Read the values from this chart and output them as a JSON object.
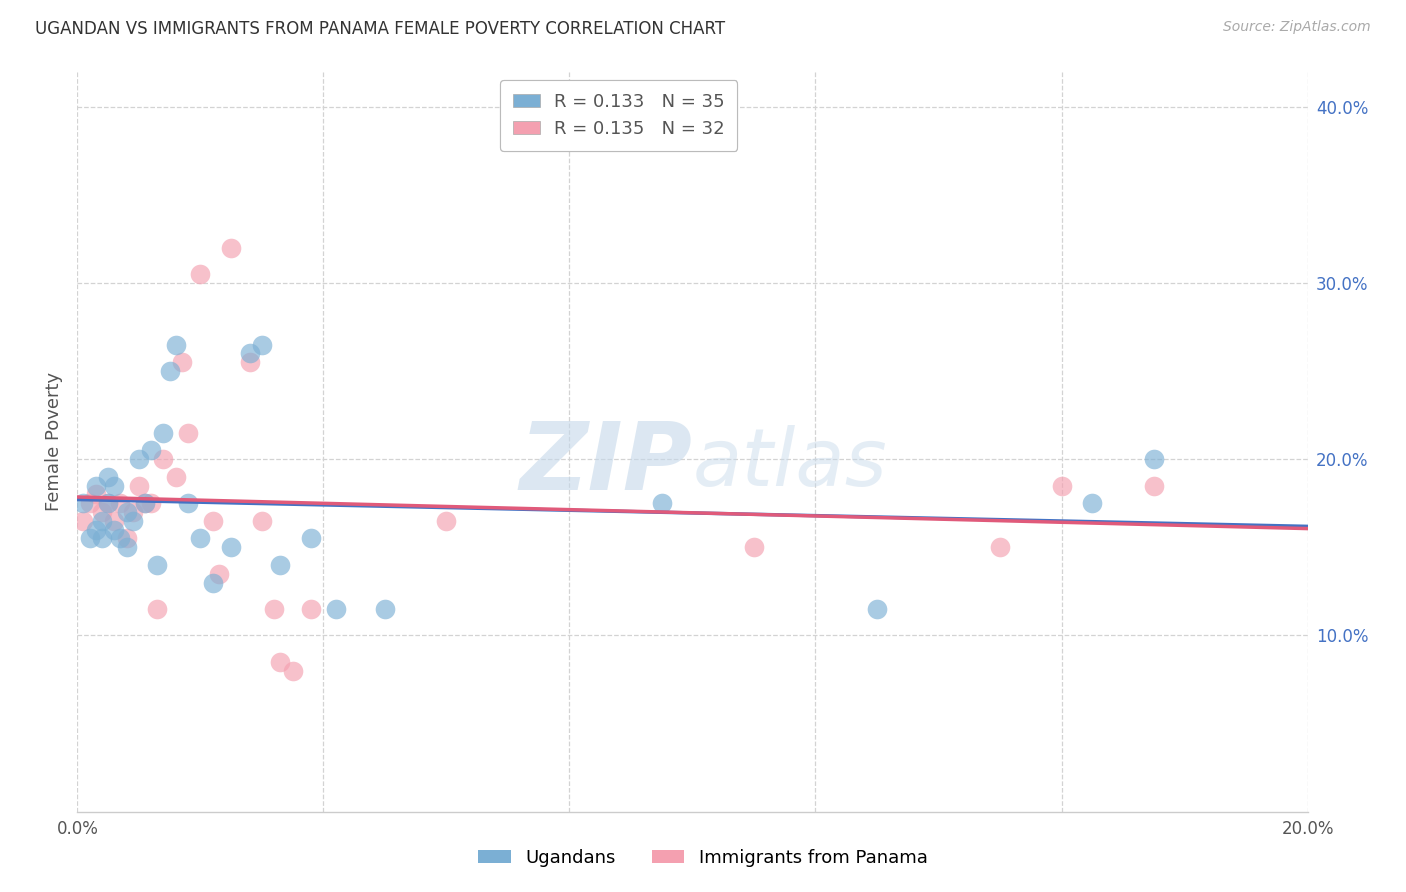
{
  "title": "UGANDAN VS IMMIGRANTS FROM PANAMA FEMALE POVERTY CORRELATION CHART",
  "source": "Source: ZipAtlas.com",
  "ylabel": "Female Poverty",
  "xlim": [
    0.0,
    0.2
  ],
  "ylim": [
    0.0,
    0.42
  ],
  "yticks": [
    0.1,
    0.2,
    0.3,
    0.4
  ],
  "ytick_labels": [
    "10.0%",
    "20.0%",
    "30.0%",
    "40.0%"
  ],
  "xticks": [
    0.0,
    0.04,
    0.08,
    0.12,
    0.16,
    0.2
  ],
  "xtick_labels": [
    "0.0%",
    "",
    "",
    "",
    "",
    "20.0%"
  ],
  "ugandan_color": "#7bafd4",
  "panama_color": "#f4a0b0",
  "line_blue": "#4472c4",
  "line_pink": "#e05a7a",
  "background_color": "#ffffff",
  "grid_color": "#d3d3d3",
  "R_ugandan": "0.133",
  "N_ugandan": "35",
  "R_panama": "0.135",
  "N_panama": "32",
  "ugandan_x": [
    0.001,
    0.002,
    0.003,
    0.003,
    0.004,
    0.004,
    0.005,
    0.005,
    0.006,
    0.006,
    0.007,
    0.008,
    0.008,
    0.009,
    0.01,
    0.011,
    0.012,
    0.013,
    0.014,
    0.015,
    0.016,
    0.018,
    0.02,
    0.022,
    0.025,
    0.028,
    0.03,
    0.033,
    0.038,
    0.042,
    0.05,
    0.095,
    0.13,
    0.165,
    0.175
  ],
  "ugandan_y": [
    0.175,
    0.155,
    0.16,
    0.185,
    0.165,
    0.155,
    0.175,
    0.19,
    0.16,
    0.185,
    0.155,
    0.17,
    0.15,
    0.165,
    0.2,
    0.175,
    0.205,
    0.14,
    0.215,
    0.25,
    0.265,
    0.175,
    0.155,
    0.13,
    0.15,
    0.26,
    0.265,
    0.14,
    0.155,
    0.115,
    0.115,
    0.175,
    0.115,
    0.175,
    0.2
  ],
  "panama_x": [
    0.001,
    0.002,
    0.003,
    0.004,
    0.005,
    0.006,
    0.007,
    0.008,
    0.009,
    0.01,
    0.011,
    0.012,
    0.013,
    0.014,
    0.016,
    0.017,
    0.018,
    0.02,
    0.022,
    0.023,
    0.025,
    0.028,
    0.03,
    0.032,
    0.033,
    0.035,
    0.038,
    0.06,
    0.11,
    0.15,
    0.16,
    0.175
  ],
  "panama_y": [
    0.165,
    0.175,
    0.18,
    0.17,
    0.175,
    0.165,
    0.175,
    0.155,
    0.17,
    0.185,
    0.175,
    0.175,
    0.115,
    0.2,
    0.19,
    0.255,
    0.215,
    0.305,
    0.165,
    0.135,
    0.32,
    0.255,
    0.165,
    0.115,
    0.085,
    0.08,
    0.115,
    0.165,
    0.15,
    0.15,
    0.185,
    0.185
  ]
}
